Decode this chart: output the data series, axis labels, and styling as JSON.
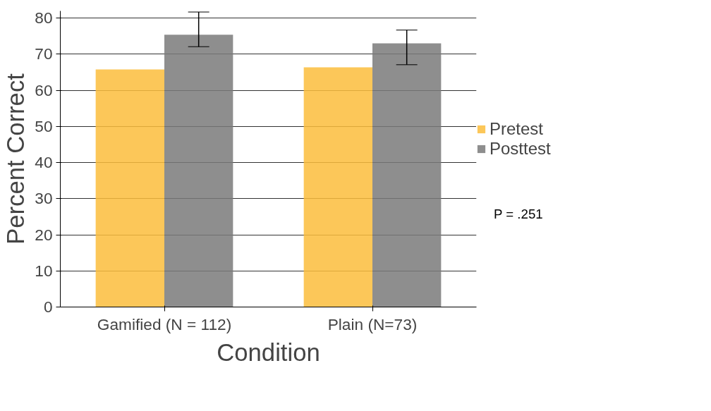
{
  "chart_data": {
    "type": "bar",
    "xlabel": "Condition",
    "ylabel": "Percent Correct",
    "categories": [
      "Gamified (N = 112)",
      "Plain (N=73)"
    ],
    "series": [
      {
        "name": "Pretest",
        "color": "#fbbd3c",
        "values": [
          65.8,
          66.4
        ]
      },
      {
        "name": "Posttest",
        "color": "#7a7a7a",
        "values": [
          75.4,
          73.0
        ],
        "errors": [
          [
            72.1,
            81.7
          ],
          [
            67.1,
            76.7
          ]
        ]
      }
    ],
    "ylim": [
      0,
      82
    ],
    "yticks": [
      0,
      10,
      20,
      30,
      40,
      50,
      60,
      70,
      80
    ],
    "grid": "y",
    "legend": "right",
    "annotations": [
      "P = .251"
    ]
  }
}
